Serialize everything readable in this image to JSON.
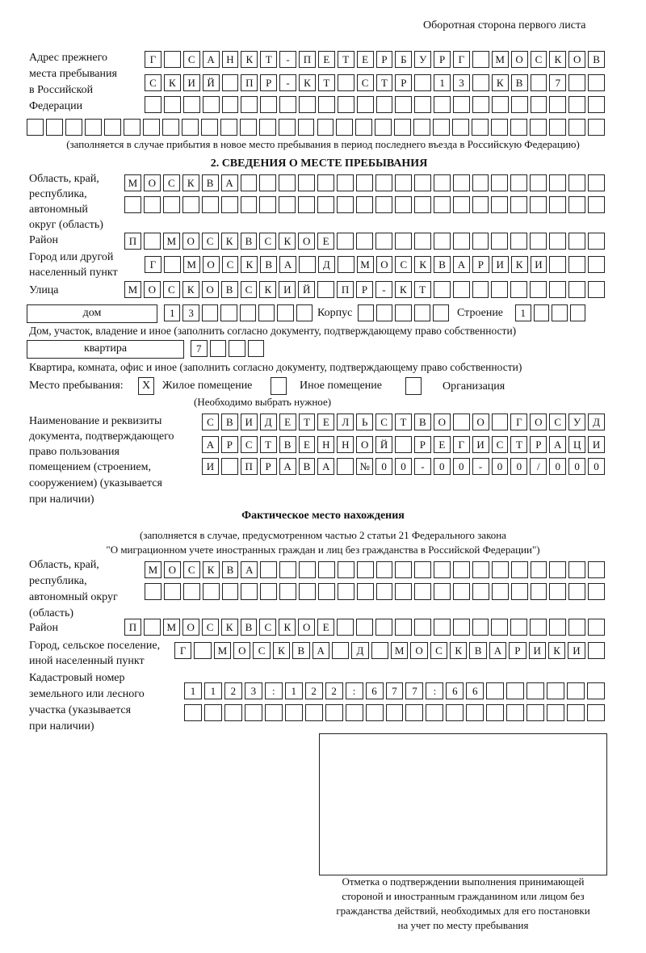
{
  "header": {
    "page_side": "Оборотная сторона первого листа"
  },
  "previous_address": {
    "label": [
      "Адрес прежнего",
      "места пребывания",
      "в Российской",
      "Федерации"
    ],
    "rows": [
      "Г САНКТ-ПЕТЕРБУРГ МОСКОВ",
      "СКИЙ ПР-КТ СТР 13 КВ 7  ",
      "                        ",
      "                              "
    ],
    "note": "(заполняется в случае прибытия в новое место пребывания в период последнего въезда в Российскую Федерацию)"
  },
  "section2": {
    "title": "2. СВЕДЕНИЯ О МЕСТЕ ПРЕБЫВАНИЯ",
    "region_label": [
      "Область, край,",
      "республика,",
      "автономный",
      "округ (область)"
    ],
    "region_rows": [
      "МОСКВА                   ",
      "                         "
    ],
    "district_label": "Район",
    "district_row": "П МОСКВСКОЕ              ",
    "city_label": [
      "Город или другой",
      "населенный пункт"
    ],
    "city_row": "Г МОСКВА Д МОСКВАРИКИ   ",
    "street_label": "Улица",
    "street_row": "МОСКОВСКИЙ ПР-КТ         ",
    "house_type": "дом",
    "house_row": "13      ",
    "korpus_label": "Корпус",
    "korpus_row": "     ",
    "building_label": "Строение",
    "building_row": "1   ",
    "house_note": "Дом, участок, владение и иное (заполнить согласно документу, подтверждающему право собственности)",
    "flat_type": "квартира",
    "flat_row": "7   ",
    "flat_note": "Квартира, комната, офис и иное (заполнить согласно документу, подтверждающему право собственности)",
    "stay_place_label": "Место пребывания:",
    "options": [
      {
        "label": "Жилое помещение",
        "mark": "X",
        "checked": true
      },
      {
        "label": "Иное помещение",
        "mark": "",
        "checked": false
      },
      {
        "label": "Организация",
        "mark": "",
        "checked": false
      }
    ],
    "choose_note": "(Необходимо выбрать нужное)",
    "doc_label": [
      "Наименование и реквизиты",
      "документа, подтверждающего",
      "право пользования",
      "помещением (строением,",
      "сооружением) (указывается",
      "при наличии)"
    ],
    "doc_rows": [
      "СВИДЕТЕЛЬСТВО О ГОСУД",
      "АРСТВЕННОЙ РЕГИСТРАЦИ",
      "И ПРАВА №00-00-00/000"
    ]
  },
  "actual": {
    "title": "Фактическое место нахождения",
    "note1": "(заполняется в случае, предусмотренном частью 2 статьи 21 Федерального закона",
    "note2": "\"О миграционном учете иностранных граждан и лиц без гражданства в Российской Федерации\")",
    "region_label": [
      "Область, край,",
      "республика,",
      "автономный округ",
      "(область)"
    ],
    "region_rows": [
      "МОСКВА                  ",
      "                        "
    ],
    "district_label": "Район",
    "district_row": "П МОСКВСКОЕ              ",
    "city_label": [
      "Город, сельское поселение,",
      "иной населенный пункт"
    ],
    "city_row": "Г МОСКВА Д МОСКВАРИКИ ",
    "cadastre_label": [
      "Кадастровый номер",
      "земельного или лесного",
      "участка (указывается",
      "при наличии)"
    ],
    "cadastre_rows": [
      "1123:122:677:66      ",
      "                     "
    ]
  },
  "confirmation": {
    "caption": [
      "Отметка о подтверждении выполнения принимающей",
      "стороной и иностранным гражданином или лицом без",
      "гражданства действий, необходимых для его постановки",
      "на учет по месту пребывания"
    ]
  }
}
